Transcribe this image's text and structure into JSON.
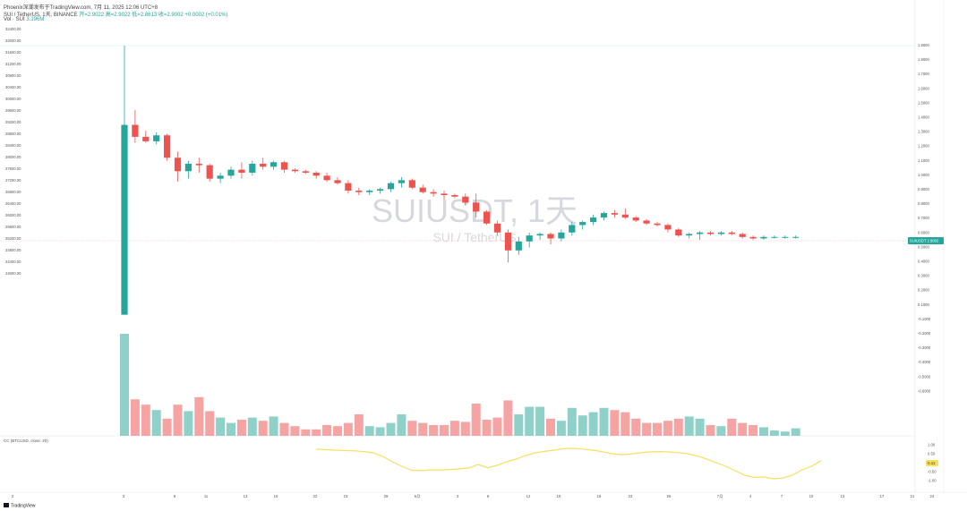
{
  "header": {
    "publisher": "Phoenix深潮发布于TradingView.com, 7月 11, 2025 12:06 UTC+8",
    "symbol_line": "SUI / TetherUS, 1天, BINANCE",
    "ohlc": "开=2.9022 高=2.9022 低=2.8613 收=2.9002 +0.0002 (+0.01%)",
    "volume_line": "Vol · SUI",
    "volume_value": "3.196M",
    "cc_label": "CC (BTCUSD, close, 20)",
    "cc_value": "0.11"
  },
  "watermark": {
    "title": "SUIUSDT, 1天",
    "subtitle": "SUI / TetherUS"
  },
  "price_tag": "SUIUSDT 2.9002",
  "footer": {
    "brand": "TradingView"
  },
  "colors": {
    "up": "#26a69a",
    "down": "#ef5350",
    "up_vol": "#8fd1c8",
    "down_vol": "#f5a3a3",
    "cc_line": "#f6e05e"
  },
  "chart_data": {
    "type": "candlestick",
    "x_ticks": [
      "2",
      "3",
      "8",
      "11",
      "13",
      "16",
      "22",
      "23",
      "29",
      "6月",
      "3",
      "6",
      "12",
      "15",
      "18",
      "23",
      "26",
      "7月",
      "4",
      "7",
      "10",
      "13",
      "17",
      "21",
      "24"
    ],
    "right_axis_ticks": [
      "1.9000",
      "1.8000",
      "1.7000",
      "1.6000",
      "1.5000",
      "1.4000",
      "1.3000",
      "1.2000",
      "1.1000",
      "1.0000",
      "0.9000",
      "0.8000",
      "0.7000",
      "0.6000",
      "0.5000",
      "0.4000",
      "0.3000",
      "0.2000",
      "0.1000",
      "-0.1000",
      "-0.2000",
      "-0.3000",
      "-0.4000",
      "-0.5000",
      "-0.6000"
    ],
    "left_axis_ticks": [
      "32400.00",
      "32000.00",
      "31600.00",
      "31200.00",
      "30800.00",
      "30400.00",
      "30000.00",
      "29600.00",
      "29200.00",
      "28800.00",
      "28400.00",
      "28000.00",
      "27600.00",
      "27200.00",
      "26800.00",
      "26400.00",
      "26000.00",
      "25600.00",
      "25200.00",
      "24800.00",
      "24400.00",
      "24000.00"
    ],
    "candles": [
      {
        "o": 0.15,
        "h": 1.95,
        "l": 0.15,
        "c": 1.42
      },
      {
        "o": 1.42,
        "h": 1.52,
        "l": 1.3,
        "c": 1.34
      },
      {
        "o": 1.34,
        "h": 1.38,
        "l": 1.3,
        "c": 1.31
      },
      {
        "o": 1.31,
        "h": 1.37,
        "l": 1.29,
        "c": 1.35
      },
      {
        "o": 1.35,
        "h": 1.36,
        "l": 1.18,
        "c": 1.2
      },
      {
        "o": 1.2,
        "h": 1.24,
        "l": 1.04,
        "c": 1.11
      },
      {
        "o": 1.11,
        "h": 1.18,
        "l": 1.06,
        "c": 1.16
      },
      {
        "o": 1.16,
        "h": 1.2,
        "l": 1.1,
        "c": 1.15
      },
      {
        "o": 1.15,
        "h": 1.16,
        "l": 1.04,
        "c": 1.06
      },
      {
        "o": 1.06,
        "h": 1.1,
        "l": 1.03,
        "c": 1.08
      },
      {
        "o": 1.08,
        "h": 1.14,
        "l": 1.06,
        "c": 1.12
      },
      {
        "o": 1.12,
        "h": 1.17,
        "l": 1.06,
        "c": 1.1
      },
      {
        "o": 1.1,
        "h": 1.18,
        "l": 1.08,
        "c": 1.16
      },
      {
        "o": 1.16,
        "h": 1.2,
        "l": 1.12,
        "c": 1.14
      },
      {
        "o": 1.14,
        "h": 1.18,
        "l": 1.12,
        "c": 1.17
      },
      {
        "o": 1.17,
        "h": 1.18,
        "l": 1.1,
        "c": 1.12
      },
      {
        "o": 1.12,
        "h": 1.13,
        "l": 1.1,
        "c": 1.11
      },
      {
        "o": 1.11,
        "h": 1.12,
        "l": 1.09,
        "c": 1.1
      },
      {
        "o": 1.1,
        "h": 1.11,
        "l": 1.06,
        "c": 1.08
      },
      {
        "o": 1.08,
        "h": 1.1,
        "l": 1.04,
        "c": 1.05
      },
      {
        "o": 1.05,
        "h": 1.07,
        "l": 1.02,
        "c": 1.03
      },
      {
        "o": 1.03,
        "h": 1.05,
        "l": 0.96,
        "c": 0.98
      },
      {
        "o": 0.98,
        "h": 1.0,
        "l": 0.95,
        "c": 0.97
      },
      {
        "o": 0.97,
        "h": 0.99,
        "l": 0.95,
        "c": 0.98
      },
      {
        "o": 0.98,
        "h": 1.0,
        "l": 0.96,
        "c": 0.99
      },
      {
        "o": 0.99,
        "h": 1.04,
        "l": 0.97,
        "c": 1.03
      },
      {
        "o": 1.03,
        "h": 1.07,
        "l": 1.0,
        "c": 1.05
      },
      {
        "o": 1.05,
        "h": 1.06,
        "l": 0.99,
        "c": 1.0
      },
      {
        "o": 1.0,
        "h": 1.02,
        "l": 0.96,
        "c": 0.97
      },
      {
        "o": 0.97,
        "h": 0.99,
        "l": 0.94,
        "c": 0.96
      },
      {
        "o": 0.96,
        "h": 0.98,
        "l": 0.92,
        "c": 0.95
      },
      {
        "o": 0.95,
        "h": 0.96,
        "l": 0.93,
        "c": 0.94
      },
      {
        "o": 0.94,
        "h": 0.96,
        "l": 0.88,
        "c": 0.9
      },
      {
        "o": 0.9,
        "h": 0.96,
        "l": 0.8,
        "c": 0.84
      },
      {
        "o": 0.84,
        "h": 0.85,
        "l": 0.75,
        "c": 0.76
      },
      {
        "o": 0.76,
        "h": 0.78,
        "l": 0.68,
        "c": 0.7
      },
      {
        "o": 0.7,
        "h": 0.72,
        "l": 0.5,
        "c": 0.58
      },
      {
        "o": 0.58,
        "h": 0.67,
        "l": 0.55,
        "c": 0.64
      },
      {
        "o": 0.64,
        "h": 0.7,
        "l": 0.6,
        "c": 0.68
      },
      {
        "o": 0.68,
        "h": 0.7,
        "l": 0.65,
        "c": 0.69
      },
      {
        "o": 0.69,
        "h": 0.7,
        "l": 0.62,
        "c": 0.66
      },
      {
        "o": 0.66,
        "h": 0.72,
        "l": 0.64,
        "c": 0.7
      },
      {
        "o": 0.7,
        "h": 0.77,
        "l": 0.68,
        "c": 0.75
      },
      {
        "o": 0.75,
        "h": 0.78,
        "l": 0.72,
        "c": 0.77
      },
      {
        "o": 0.77,
        "h": 0.82,
        "l": 0.75,
        "c": 0.8
      },
      {
        "o": 0.8,
        "h": 0.84,
        "l": 0.78,
        "c": 0.83
      },
      {
        "o": 0.83,
        "h": 0.85,
        "l": 0.8,
        "c": 0.82
      },
      {
        "o": 0.82,
        "h": 0.86,
        "l": 0.79,
        "c": 0.8
      },
      {
        "o": 0.8,
        "h": 0.81,
        "l": 0.77,
        "c": 0.78
      },
      {
        "o": 0.78,
        "h": 0.79,
        "l": 0.75,
        "c": 0.76
      },
      {
        "o": 0.76,
        "h": 0.77,
        "l": 0.74,
        "c": 0.75
      },
      {
        "o": 0.75,
        "h": 0.76,
        "l": 0.7,
        "c": 0.72
      },
      {
        "o": 0.72,
        "h": 0.73,
        "l": 0.67,
        "c": 0.68
      },
      {
        "o": 0.68,
        "h": 0.7,
        "l": 0.66,
        "c": 0.69
      },
      {
        "o": 0.69,
        "h": 0.71,
        "l": 0.65,
        "c": 0.7
      },
      {
        "o": 0.7,
        "h": 0.71,
        "l": 0.68,
        "c": 0.69
      },
      {
        "o": 0.69,
        "h": 0.71,
        "l": 0.68,
        "c": 0.7
      },
      {
        "o": 0.7,
        "h": 0.71,
        "l": 0.68,
        "c": 0.69
      },
      {
        "o": 0.69,
        "h": 0.7,
        "l": 0.66,
        "c": 0.67
      },
      {
        "o": 0.67,
        "h": 0.68,
        "l": 0.65,
        "c": 0.66
      },
      {
        "o": 0.66,
        "h": 0.68,
        "l": 0.65,
        "c": 0.67
      },
      {
        "o": 0.67,
        "h": 0.68,
        "l": 0.66,
        "c": 0.67
      },
      {
        "o": 0.67,
        "h": 0.68,
        "l": 0.66,
        "c": 0.67
      },
      {
        "o": 0.67,
        "h": 0.68,
        "l": 0.66,
        "c": 0.67
      }
    ],
    "volumes": [
      0.95,
      0.34,
      0.29,
      0.24,
      0.16,
      0.29,
      0.23,
      0.36,
      0.23,
      0.17,
      0.12,
      0.15,
      0.17,
      0.14,
      0.18,
      0.12,
      0.09,
      0.06,
      0.06,
      0.1,
      0.09,
      0.12,
      0.2,
      0.09,
      0.08,
      0.12,
      0.2,
      0.14,
      0.12,
      0.1,
      0.1,
      0.14,
      0.13,
      0.3,
      0.15,
      0.17,
      0.33,
      0.2,
      0.27,
      0.27,
      0.16,
      0.14,
      0.26,
      0.19,
      0.22,
      0.26,
      0.24,
      0.22,
      0.16,
      0.12,
      0.12,
      0.14,
      0.16,
      0.18,
      0.16,
      0.1,
      0.09,
      0.16,
      0.12,
      0.1,
      0.08,
      0.05,
      0.04,
      0.07
    ],
    "cc_values": [
      0.75,
      0.73,
      0.7,
      0.68,
      0.66,
      0.62,
      0.55,
      0.35,
      0.05,
      -0.2,
      -0.42,
      -0.45,
      -0.4,
      -0.42,
      -0.38,
      -0.35,
      -0.3,
      -0.1,
      -0.28,
      -0.15,
      0.05,
      0.2,
      0.4,
      0.55,
      0.63,
      0.7,
      0.78,
      0.8,
      0.76,
      0.7,
      0.62,
      0.5,
      0.45,
      0.48,
      0.55,
      0.6,
      0.62,
      0.6,
      0.56,
      0.5,
      0.38,
      0.2,
      0.0,
      -0.2,
      -0.45,
      -0.7,
      -0.82,
      -0.8,
      -0.9,
      -0.86,
      -0.7,
      -0.4,
      -0.2,
      0.11
    ]
  }
}
